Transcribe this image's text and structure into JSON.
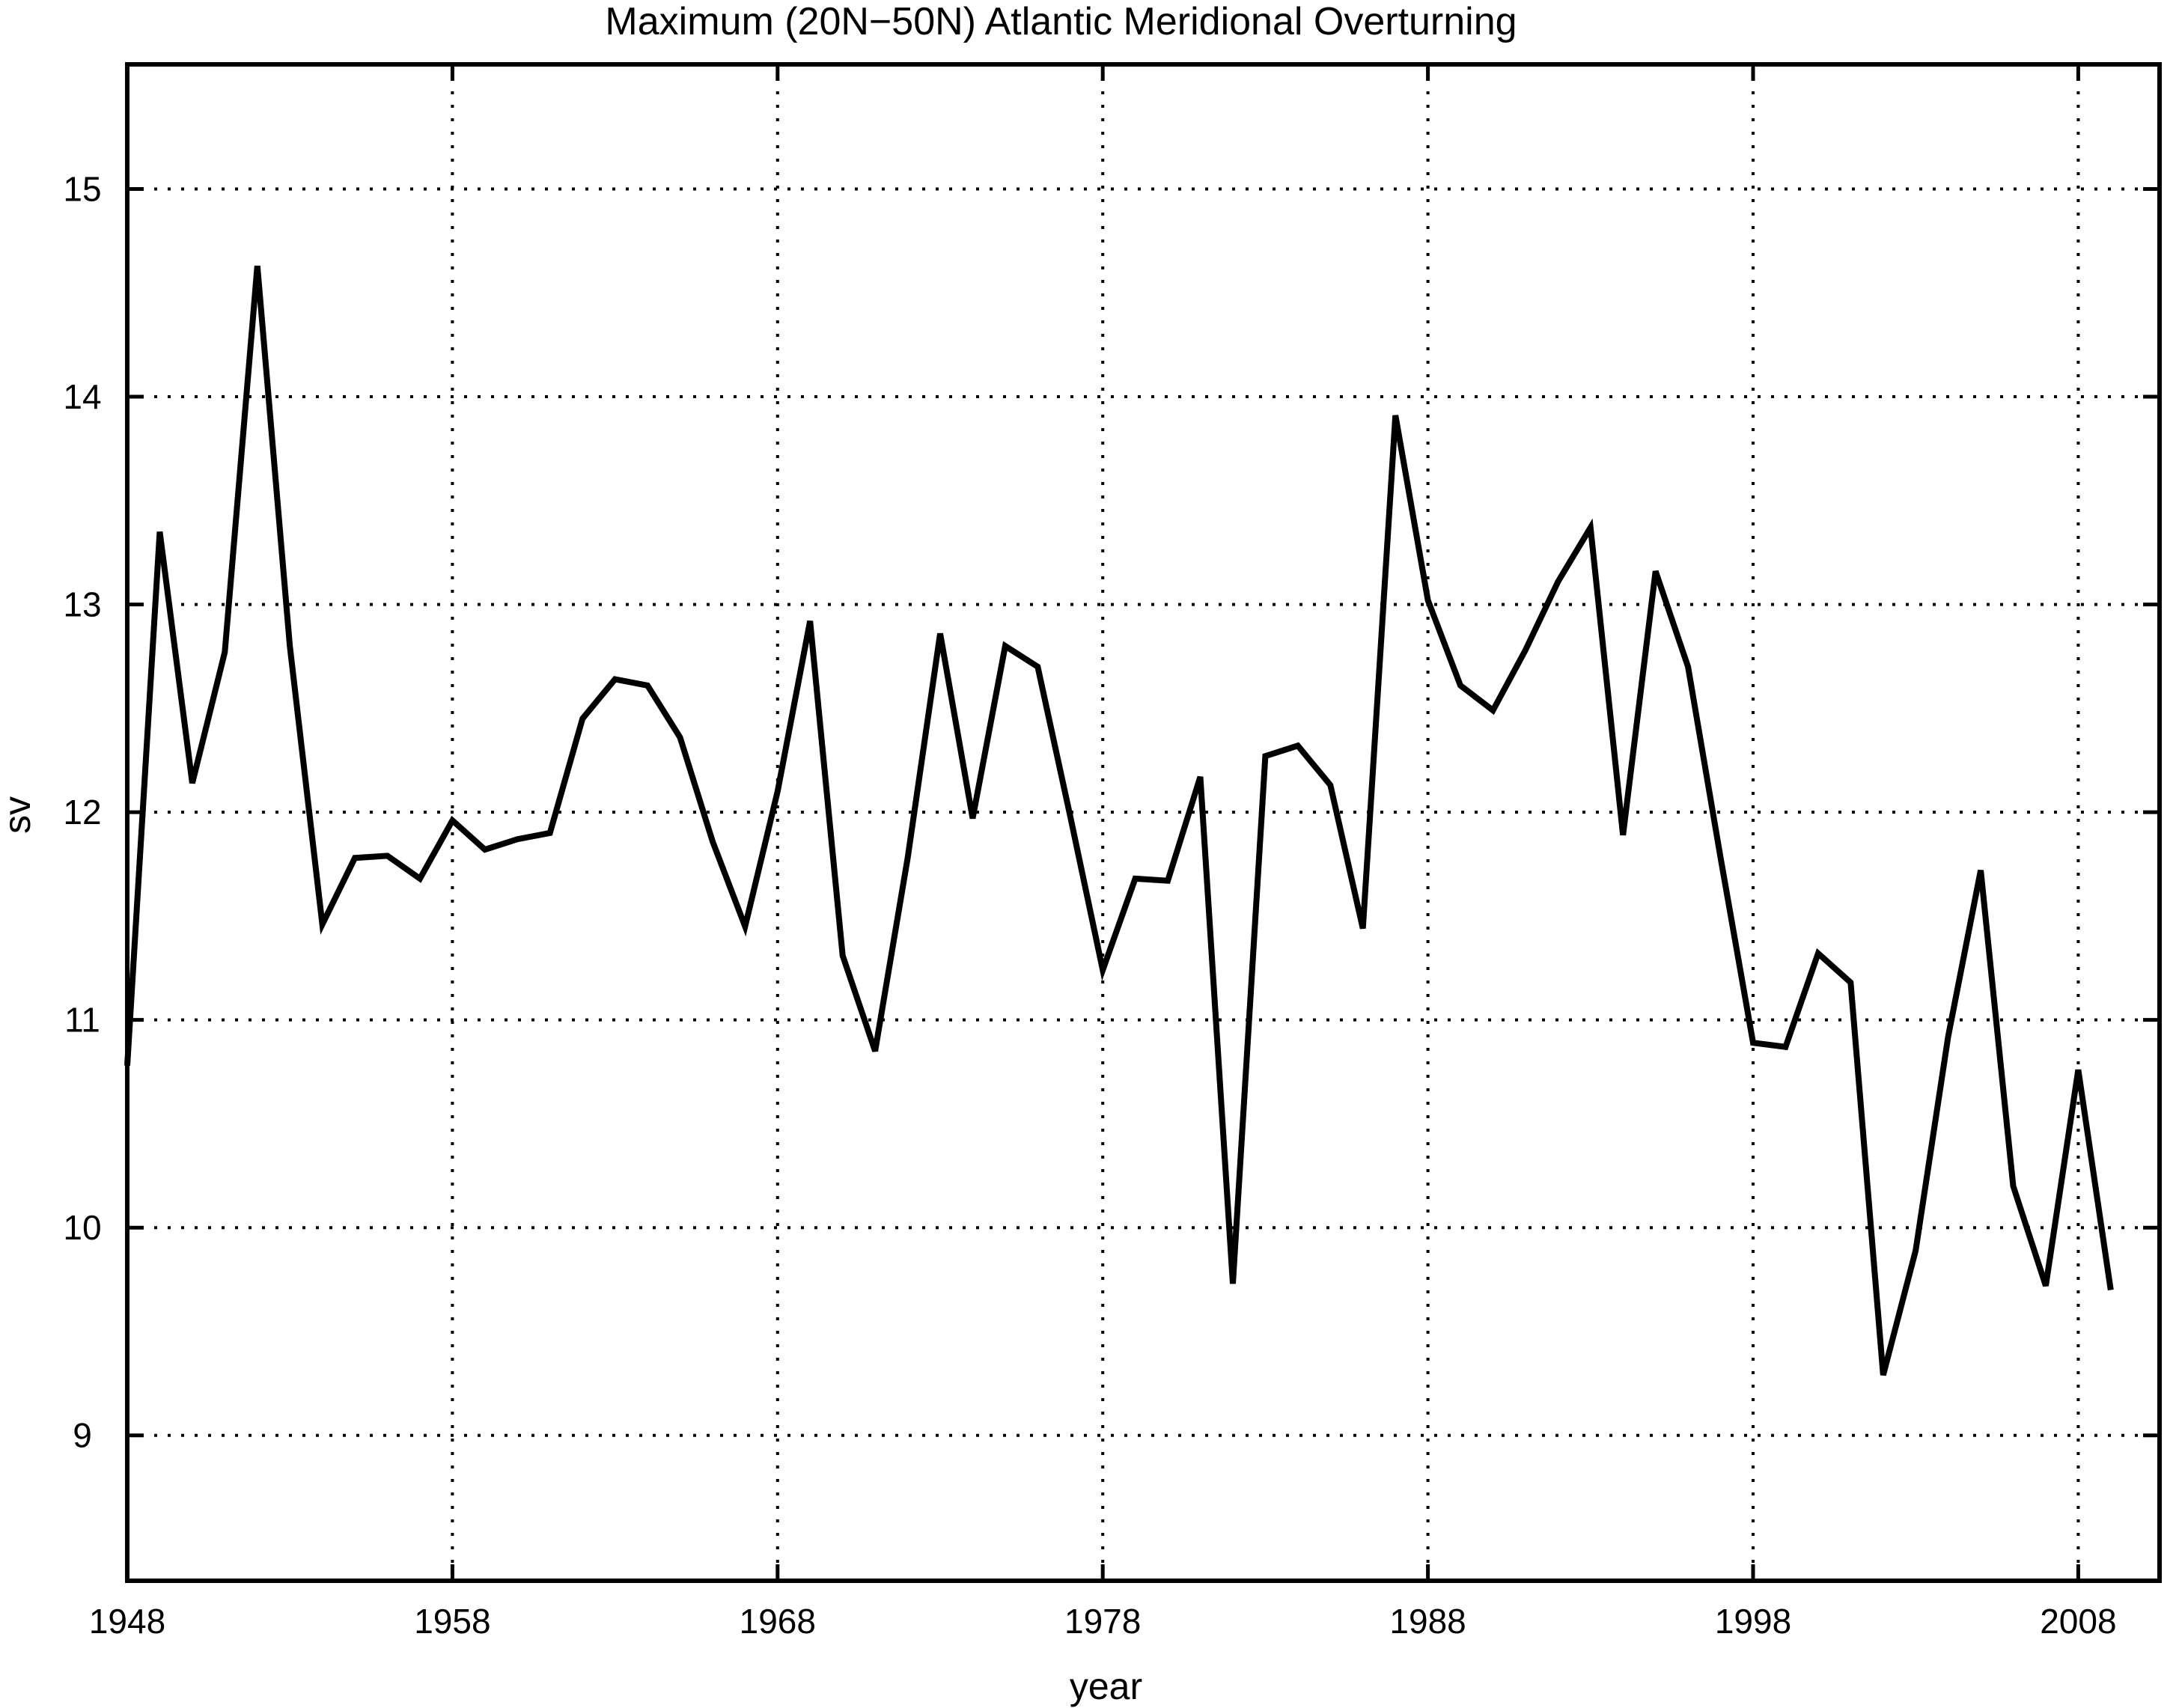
{
  "chart_data": {
    "type": "line",
    "title": "Maximum (20N−50N) Atlantic Meridional Overturning",
    "xlabel": "year",
    "ylabel": "sv",
    "xlim": [
      1948,
      2010.5
    ],
    "ylim": [
      8.3,
      15.6
    ],
    "xticks": [
      1948,
      1958,
      1968,
      1978,
      1988,
      1998,
      2008
    ],
    "yticks": [
      9,
      10,
      11,
      12,
      13,
      14,
      15
    ],
    "grid": true,
    "series": [
      {
        "x": [
          1948,
          1949,
          1950,
          1951,
          1952,
          1953,
          1954,
          1955,
          1956,
          1957,
          1958,
          1959,
          1960,
          1961,
          1962,
          1963,
          1964,
          1965,
          1966,
          1967,
          1968,
          1969,
          1970,
          1971,
          1972,
          1973,
          1974,
          1975,
          1976,
          1977,
          1978,
          1979,
          1980,
          1981,
          1982,
          1983,
          1984,
          1985,
          1986,
          1987,
          1988,
          1989,
          1990,
          1991,
          1992,
          1993,
          1994,
          1995,
          1996,
          1997,
          1998,
          1999,
          2000,
          2001,
          2002,
          2003,
          2004,
          2005,
          2006,
          2007,
          2008,
          2009
        ],
        "values": [
          10.78,
          13.35,
          12.14,
          12.77,
          14.63,
          12.8,
          11.46,
          11.78,
          11.79,
          11.68,
          11.96,
          11.82,
          11.87,
          11.9,
          12.45,
          12.64,
          12.61,
          12.36,
          11.86,
          11.45,
          12.1,
          12.92,
          11.31,
          10.85,
          11.78,
          12.86,
          11.97,
          12.8,
          12.7,
          11.98,
          11.24,
          11.68,
          11.67,
          12.17,
          9.73,
          12.27,
          12.32,
          12.13,
          11.44,
          13.91,
          13.02,
          12.61,
          12.49,
          12.78,
          13.11,
          13.37,
          11.89,
          13.16,
          12.7,
          11.78,
          10.89,
          10.87,
          11.32,
          11.18,
          9.29,
          9.89,
          10.92,
          11.72,
          10.2,
          9.72,
          10.76,
          9.7
        ]
      }
    ]
  }
}
